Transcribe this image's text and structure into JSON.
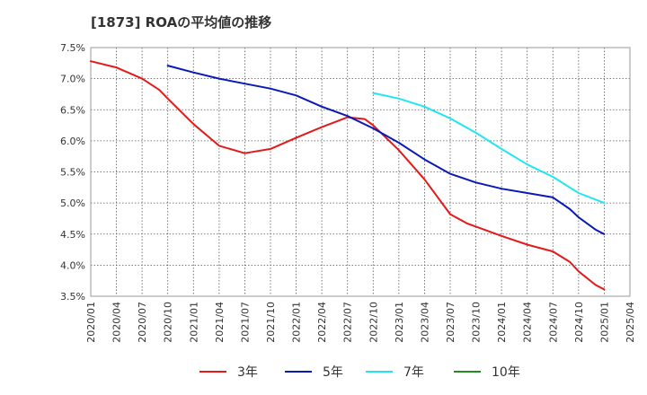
{
  "chart_data": {
    "type": "line",
    "title": "[1873]  ROAの平均値の推移",
    "xlabel": "",
    "ylabel": "",
    "ylim": [
      3.5,
      7.5
    ],
    "y_ticks": [
      "3.5%",
      "4.0%",
      "4.5%",
      "5.0%",
      "5.5%",
      "6.0%",
      "6.5%",
      "7.0%",
      "7.5%"
    ],
    "x_ticks": [
      "2020/01",
      "2020/04",
      "2020/07",
      "2020/10",
      "2021/01",
      "2021/04",
      "2021/07",
      "2021/10",
      "2022/01",
      "2022/04",
      "2022/07",
      "2022/10",
      "2023/01",
      "2023/04",
      "2023/07",
      "2023/10",
      "2024/01",
      "2024/04",
      "2024/07",
      "2024/10",
      "2025/01",
      "2025/04"
    ],
    "grid": true,
    "legend_position": "bottom",
    "series": [
      {
        "name": "3年",
        "color": "#e31a1c",
        "values": [
          [
            "2020/01",
            7.28
          ],
          [
            "2020/04",
            7.18
          ],
          [
            "2020/07",
            7.0
          ],
          [
            "2020/09",
            6.82
          ],
          [
            "2020/10",
            6.68
          ],
          [
            "2021/01",
            6.27
          ],
          [
            "2021/04",
            5.92
          ],
          [
            "2021/07",
            5.8
          ],
          [
            "2021/10",
            5.87
          ],
          [
            "2022/01",
            6.05
          ],
          [
            "2022/04",
            6.22
          ],
          [
            "2022/07",
            6.38
          ],
          [
            "2022/09",
            6.35
          ],
          [
            "2022/10",
            6.25
          ],
          [
            "2023/01",
            5.85
          ],
          [
            "2023/04",
            5.38
          ],
          [
            "2023/07",
            4.82
          ],
          [
            "2023/09",
            4.67
          ],
          [
            "2023/10",
            4.62
          ],
          [
            "2024/01",
            4.47
          ],
          [
            "2024/04",
            4.33
          ],
          [
            "2024/07",
            4.22
          ],
          [
            "2024/09",
            4.05
          ],
          [
            "2024/10",
            3.9
          ],
          [
            "2024/12",
            3.68
          ],
          [
            "2025/01",
            3.61
          ]
        ]
      },
      {
        "name": "5年",
        "color": "#0a1ab5",
        "values": [
          [
            "2020/10",
            7.21
          ],
          [
            "2021/01",
            7.1
          ],
          [
            "2021/04",
            7.0
          ],
          [
            "2021/07",
            6.92
          ],
          [
            "2021/10",
            6.84
          ],
          [
            "2022/01",
            6.73
          ],
          [
            "2022/04",
            6.55
          ],
          [
            "2022/07",
            6.4
          ],
          [
            "2022/10",
            6.2
          ],
          [
            "2023/01",
            5.97
          ],
          [
            "2023/04",
            5.7
          ],
          [
            "2023/07",
            5.47
          ],
          [
            "2023/10",
            5.33
          ],
          [
            "2024/01",
            5.23
          ],
          [
            "2024/04",
            5.16
          ],
          [
            "2024/07",
            5.09
          ],
          [
            "2024/09",
            4.9
          ],
          [
            "2024/10",
            4.77
          ],
          [
            "2024/12",
            4.57
          ],
          [
            "2025/01",
            4.5
          ]
        ]
      },
      {
        "name": "7年",
        "color": "#22e5f0",
        "values": [
          [
            "2022/10",
            6.77
          ],
          [
            "2023/01",
            6.68
          ],
          [
            "2023/04",
            6.55
          ],
          [
            "2023/07",
            6.36
          ],
          [
            "2023/10",
            6.13
          ],
          [
            "2024/01",
            5.87
          ],
          [
            "2024/04",
            5.62
          ],
          [
            "2024/07",
            5.42
          ],
          [
            "2024/10",
            5.16
          ],
          [
            "2025/01",
            5.0
          ]
        ]
      },
      {
        "name": "10年",
        "color": "#228b22",
        "values": []
      }
    ]
  }
}
